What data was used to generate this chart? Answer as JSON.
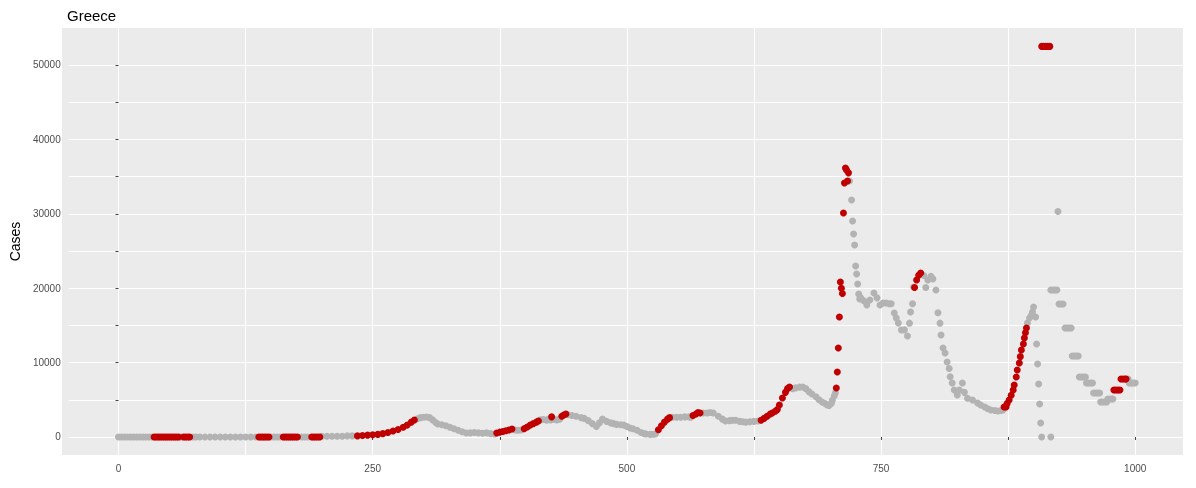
{
  "chart_data": {
    "type": "scatter",
    "title": "Greece",
    "ylabel": "Cases",
    "grid": true,
    "marker": "circle",
    "xlim": [
      -49,
      1047
    ],
    "ylim": [
      -2420,
      54970
    ],
    "xticks": [
      0,
      {
        "value": 125,
        "label": null
      },
      250,
      {
        "value": 375,
        "label": null
      },
      500,
      {
        "value": 625,
        "label": null
      },
      750,
      {
        "value": 875,
        "label": null
      },
      1000
    ],
    "yticks": [
      0,
      {
        "value": 5000,
        "label": null
      },
      10000,
      {
        "value": 15000,
        "label": null
      },
      20000,
      {
        "value": 25000,
        "label": null
      },
      30000,
      {
        "value": 35000,
        "label": null
      },
      40000,
      {
        "value": 45000,
        "label": null
      },
      50000
    ],
    "series": [
      {
        "color": "#b3b3b3",
        "x": [
          0,
          3,
          6,
          9,
          12,
          15,
          18,
          21,
          24,
          27,
          30,
          33,
          60,
          62,
          73,
          76,
          80,
          85,
          90,
          95,
          100,
          105,
          110,
          115,
          120,
          125,
          130,
          135,
          150,
          153,
          156,
          159,
          180,
          183,
          186,
          200,
          205,
          210,
          215,
          220,
          225,
          230,
          294,
          297,
          300,
          303,
          306,
          309,
          312,
          314,
          318,
          322,
          326,
          330,
          334,
          338,
          342,
          346,
          350,
          354,
          358,
          362,
          366,
          370,
          390,
          393,
          396,
          415,
          418,
          421,
          423,
          425,
          428,
          431,
          434,
          442,
          446,
          450,
          455,
          458,
          462,
          466,
          470,
          473,
          476,
          480,
          484,
          487,
          490,
          494,
          497,
          500,
          503,
          506,
          510,
          514,
          517,
          519,
          523,
          526,
          528,
          545,
          549,
          553,
          557,
          561,
          563,
          575,
          579,
          582,
          585,
          590,
          594,
          597,
          601,
          604,
          607,
          611,
          614,
          617,
          621,
          625,
          629,
          663,
          666,
          670,
          673,
          676,
          679,
          682,
          686,
          689,
          692,
          695,
          697,
          699,
          701,
          702,
          704,
          705,
          719,
          721,
          722,
          723,
          724,
          725,
          726,
          727,
          728,
          729,
          730,
          733,
          736,
          739,
          743,
          746,
          749,
          752,
          755,
          758,
          760,
          763,
          765,
          767,
          770,
          773,
          776,
          778,
          779,
          781,
          782,
          792,
          794,
          796,
          799,
          801,
          804,
          806,
          808,
          809,
          811,
          813,
          815,
          817,
          818,
          820,
          822,
          825,
          827,
          830,
          832,
          835,
          840,
          845,
          848,
          852,
          855,
          858,
          862,
          865,
          868,
          870,
          894,
          896,
          898,
          899,
          900,
          902,
          903,
          904,
          905,
          906,
          907,
          908,
          917,
          924,
          917,
          919,
          921,
          923,
          925,
          927,
          929,
          931,
          933,
          935,
          937,
          938,
          940,
          942,
          944,
          945,
          947,
          949,
          951,
          952,
          954,
          956,
          958,
          959,
          961,
          963,
          965,
          966,
          968,
          970,
          972,
          973,
          975,
          977,
          978,
          993,
          994,
          996,
          998,
          1000
        ],
        "values": [
          0,
          0,
          0,
          0,
          0,
          0,
          0,
          0,
          0,
          0,
          0,
          0,
          0,
          0,
          0,
          0,
          0,
          0,
          0,
          0,
          0,
          0,
          0,
          0,
          0,
          0,
          0,
          0,
          0,
          0,
          0,
          0,
          0,
          0,
          0,
          100,
          100,
          100,
          100,
          100,
          150,
          150,
          2450,
          2600,
          2650,
          2690,
          2600,
          2300,
          1950,
          1750,
          1650,
          1500,
          1300,
          1100,
          900,
          700,
          540,
          550,
          600,
          550,
          500,
          550,
          450,
          400,
          950,
          900,
          950,
          2300,
          2350,
          2250,
          2400,
          2300,
          2400,
          2300,
          2400,
          3000,
          2900,
          2800,
          2600,
          2500,
          2200,
          1800,
          1400,
          1900,
          2400,
          2100,
          1900,
          1800,
          1700,
          1650,
          1600,
          1400,
          1200,
          1100,
          900,
          600,
          450,
          400,
          350,
          380,
          400,
          2650,
          2650,
          2650,
          2700,
          2700,
          2650,
          3230,
          3230,
          3300,
          3230,
          2800,
          2400,
          2150,
          2200,
          2250,
          2240,
          2100,
          2050,
          2000,
          2050,
          2100,
          2150,
          6500,
          6600,
          6700,
          6720,
          6500,
          6100,
          5780,
          5400,
          5000,
          4700,
          4500,
          4300,
          4250,
          4500,
          4920,
          5500,
          5910,
          34400,
          31850,
          29030,
          27280,
          25800,
          22980,
          21910,
          20560,
          19220,
          18550,
          18700,
          18300,
          17740,
          18400,
          19350,
          18700,
          17740,
          18000,
          18000,
          17900,
          17900,
          16670,
          16000,
          15320,
          14380,
          14400,
          13570,
          15300,
          16800,
          17900,
          20160,
          21700,
          20100,
          21100,
          21600,
          21250,
          19760,
          16700,
          15300,
          13710,
          11960,
          11300,
          10080,
          9200,
          8100,
          7260,
          6320,
          5650,
          6320,
          7260,
          6000,
          5200,
          4970,
          4570,
          4300,
          4030,
          3800,
          3630,
          3550,
          3490,
          3550,
          3630,
          15320,
          15990,
          16400,
          16800,
          17470,
          16130,
          12500,
          9810,
          7120,
          4440,
          1880,
          0,
          0,
          30300,
          19760,
          19760,
          19760,
          19760,
          17870,
          17870,
          17870,
          14650,
          14650,
          14650,
          14650,
          10890,
          10890,
          10890,
          10890,
          8060,
          8060,
          8060,
          8060,
          7260,
          7260,
          7260,
          7260,
          5910,
          5910,
          5910,
          5910,
          4700,
          4700,
          4700,
          4700,
          5110,
          5110,
          5110,
          5110,
          7800,
          7260,
          7260,
          7260,
          7260
        ]
      },
      {
        "color": "#c00000",
        "x": [
          35,
          37,
          39,
          41,
          43,
          45,
          47,
          49,
          51,
          53,
          55,
          57,
          59,
          64,
          66,
          68,
          70,
          138,
          140,
          142,
          144,
          146,
          148,
          162,
          164,
          166,
          168,
          170,
          172,
          174,
          176,
          190,
          192,
          194,
          196,
          198,
          235,
          240,
          245,
          250,
          255,
          260,
          265,
          270,
          275,
          280,
          284,
          288,
          291,
          372,
          375,
          378,
          381,
          384,
          387,
          399,
          402,
          405,
          408,
          411,
          413,
          426,
          436,
          438,
          440,
          531,
          534,
          537,
          540,
          542,
          565,
          568,
          570,
          572,
          632,
          635,
          638,
          641,
          643,
          646,
          648,
          650,
          653,
          656,
          658,
          660,
          706,
          707,
          708,
          709,
          710,
          711,
          712,
          713,
          714,
          715,
          716,
          717,
          718,
          783,
          785,
          787,
          789,
          871,
          873,
          874,
          876,
          878,
          880,
          881,
          883,
          884,
          886,
          887,
          888,
          890,
          891,
          892,
          893,
          908,
          910,
          912,
          914,
          916,
          979,
          981,
          983,
          985,
          986,
          988,
          990,
          991
        ],
        "values": [
          0,
          0,
          0,
          0,
          0,
          0,
          0,
          0,
          0,
          0,
          0,
          0,
          0,
          0,
          0,
          0,
          0,
          0,
          0,
          0,
          0,
          0,
          0,
          0,
          0,
          0,
          0,
          0,
          0,
          0,
          0,
          0,
          0,
          0,
          0,
          0,
          150,
          200,
          250,
          300,
          350,
          450,
          600,
          800,
          1000,
          1300,
          1600,
          2000,
          2280,
          540,
          650,
          750,
          850,
          950,
          1080,
          1120,
          1350,
          1600,
          1800,
          2000,
          2150,
          2700,
          2800,
          2950,
          3100,
          970,
          1500,
          2000,
          2400,
          2600,
          2900,
          3100,
          3300,
          3230,
          2240,
          2500,
          2800,
          3100,
          3230,
          3450,
          3680,
          4300,
          5240,
          6000,
          6500,
          6720,
          6590,
          8740,
          11960,
          16130,
          20830,
          20000,
          19290,
          30100,
          34140,
          36160,
          35900,
          34400,
          35500,
          20100,
          21100,
          21750,
          22040,
          4030,
          4030,
          4500,
          4970,
          5600,
          6320,
          7000,
          8060,
          9000,
          9950,
          10800,
          11690,
          12500,
          13310,
          14000,
          14650,
          52500,
          52500,
          52500,
          52500,
          52500,
          6320,
          6320,
          6320,
          6320,
          7800,
          7800,
          7800,
          7800
        ]
      }
    ]
  }
}
